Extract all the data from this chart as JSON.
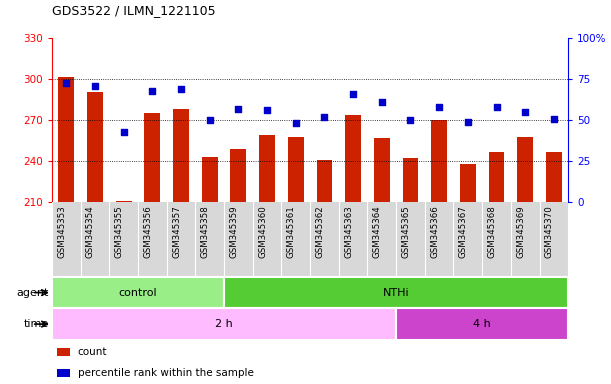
{
  "title": "GDS3522 / ILMN_1221105",
  "samples": [
    "GSM345353",
    "GSM345354",
    "GSM345355",
    "GSM345356",
    "GSM345357",
    "GSM345358",
    "GSM345359",
    "GSM345360",
    "GSM345361",
    "GSM345362",
    "GSM345363",
    "GSM345364",
    "GSM345365",
    "GSM345366",
    "GSM345367",
    "GSM345368",
    "GSM345369",
    "GSM345370"
  ],
  "bar_values": [
    302,
    291,
    211,
    275,
    278,
    243,
    249,
    259,
    258,
    241,
    274,
    257,
    242,
    270,
    238,
    247,
    258,
    247
  ],
  "dot_values": [
    73,
    71,
    43,
    68,
    69,
    50,
    57,
    56,
    48,
    52,
    66,
    61,
    50,
    58,
    49,
    58,
    55,
    51
  ],
  "bar_color": "#cc2200",
  "dot_color": "#0000cc",
  "ylim_left": [
    210,
    330
  ],
  "ylim_right": [
    0,
    100
  ],
  "yticks_left": [
    210,
    240,
    270,
    300,
    330
  ],
  "yticks_right": [
    0,
    25,
    50,
    75,
    100
  ],
  "yticklabels_right": [
    "0",
    "25",
    "50",
    "75",
    "100%"
  ],
  "gridlines": [
    240,
    270,
    300
  ],
  "agent_groups": [
    {
      "label": "control",
      "start": 0,
      "end": 6,
      "color": "#99ee88"
    },
    {
      "label": "NTHi",
      "start": 6,
      "end": 18,
      "color": "#55cc33"
    }
  ],
  "time_groups": [
    {
      "label": "2 h",
      "start": 0,
      "end": 12,
      "color": "#ffbbff"
    },
    {
      "label": "4 h",
      "start": 12,
      "end": 18,
      "color": "#cc44cc"
    }
  ],
  "legend_items": [
    {
      "color": "#cc2200",
      "label": "count"
    },
    {
      "color": "#0000cc",
      "label": "percentile rank within the sample"
    }
  ],
  "agent_label": "agent",
  "time_label": "time",
  "xtick_bg": "#d8d8d8"
}
